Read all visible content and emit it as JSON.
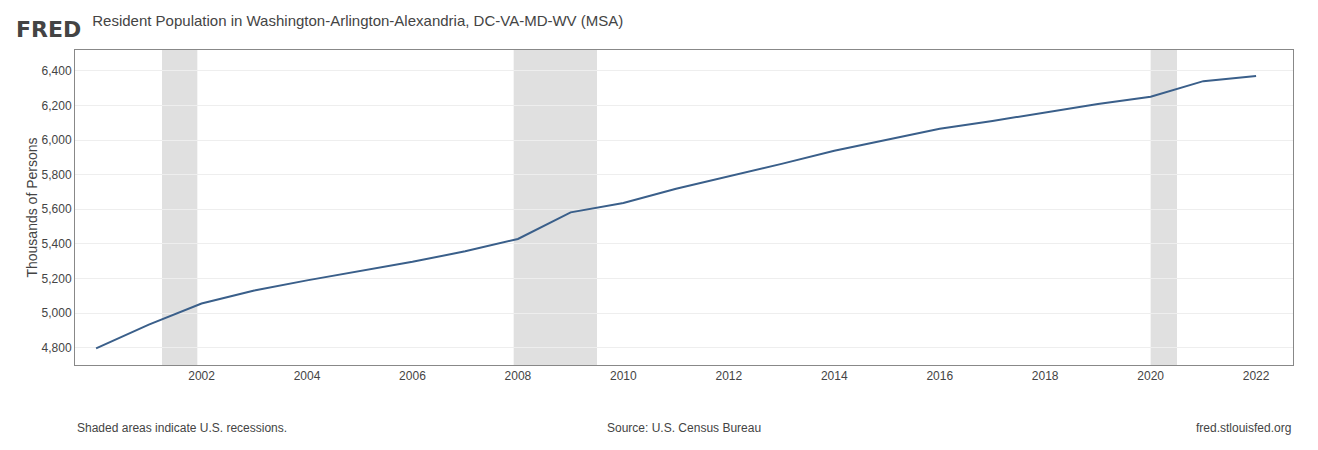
{
  "chart_data": {
    "type": "line",
    "title": "Resident Population in Washington-Arlington-Alexandria, DC-VA-MD-WV (MSA)",
    "ylabel": "Thousands of Persons",
    "x": [
      2000,
      2001,
      2002,
      2003,
      2004,
      2005,
      2006,
      2007,
      2008,
      2009,
      2010,
      2011,
      2012,
      2013,
      2014,
      2015,
      2016,
      2017,
      2018,
      2019,
      2020,
      2021,
      2022
    ],
    "values": [
      4796,
      4933,
      5055,
      5130,
      5189,
      5244,
      5296,
      5357,
      5428,
      5582,
      5636,
      5718,
      5788,
      5862,
      5938,
      6001,
      6065,
      6110,
      6157,
      6208,
      6250,
      6340,
      6370
    ],
    "color": "#3a5f8a",
    "xlim": [
      1999.6,
      2022.7
    ],
    "xticks": [
      2002,
      2004,
      2006,
      2008,
      2010,
      2012,
      2014,
      2016,
      2018,
      2020,
      2022
    ],
    "ylim": [
      4700,
      6520
    ],
    "yticks": [
      {
        "value": 4800,
        "label": "4,800"
      },
      {
        "value": 5000,
        "label": "5,000"
      },
      {
        "value": 5200,
        "label": "5,200"
      },
      {
        "value": 5400,
        "label": "5,400"
      },
      {
        "value": 5600,
        "label": "5,600"
      },
      {
        "value": 5800,
        "label": "5,800"
      },
      {
        "value": 6000,
        "label": "6,000"
      },
      {
        "value": 6200,
        "label": "6,200"
      },
      {
        "value": 6400,
        "label": "6,400"
      }
    ],
    "grid": "y",
    "recessions": {
      "color": "#e0e0e0",
      "ranges": [
        [
          2001.25,
          2001.92
        ],
        [
          2007.92,
          2009.5
        ],
        [
          2020.0,
          2020.5
        ]
      ]
    },
    "annotations": [
      "FRED",
      "Shaded areas indicate U.S. recessions.",
      "Source: U.S. Census Bureau",
      "fred.stlouisfed.org"
    ]
  }
}
